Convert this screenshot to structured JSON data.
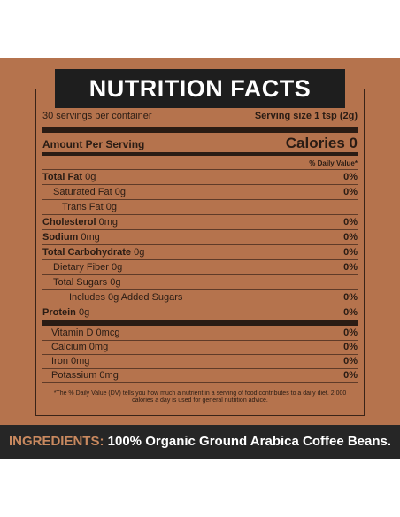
{
  "header": {
    "title": "NUTRITION FACTS"
  },
  "servings": "30 servings per container",
  "serving_size": "Serving size 1 tsp (2g)",
  "amount_label": "Amount Per Serving",
  "calories": "Calories 0",
  "dv_header": "% Daily Value*",
  "nutrients": [
    {
      "label": "Total Fat",
      "amount": "0g",
      "dv": "0%"
    },
    {
      "label": "Saturated Fat",
      "amount": "0g",
      "dv": "0%"
    },
    {
      "label": "Trans Fat",
      "amount": "0g",
      "dv": null
    },
    {
      "label": "Cholesterol",
      "amount": "0mg",
      "dv": "0%"
    },
    {
      "label": "Sodium",
      "amount": "0mg",
      "dv": "0%"
    },
    {
      "label": "Total Carbohydrate",
      "amount": "0g",
      "dv": "0%"
    },
    {
      "label": "Dietary Fiber",
      "amount": "0g",
      "dv": "0%"
    },
    {
      "label": "Total Sugars",
      "amount": "0g",
      "dv": null
    },
    {
      "label": "Includes 0g Added Sugars",
      "amount": null,
      "dv": "0%"
    },
    {
      "label": "Protein",
      "amount": "0g",
      "dv": "0%"
    }
  ],
  "vitamins": [
    {
      "label": "Vitamin D",
      "amount": "0mcg",
      "dv": "0%"
    },
    {
      "label": "Calcium",
      "amount": "0mg",
      "dv": "0%"
    },
    {
      "label": "Iron",
      "amount": "0mg",
      "dv": "0%"
    },
    {
      "label": "Potassium",
      "amount": "0mg",
      "dv": "0%"
    }
  ],
  "footnote": "*The % Daily Value (DV) tells you how much a nutrient in a serving of food contributes to a daily diet. 2,000 calories a day is used for general nutrition advice.",
  "ingredients": {
    "label": "INGREDIENTS:",
    "text": "100% Organic Ground Arabica Coffee Beans."
  }
}
